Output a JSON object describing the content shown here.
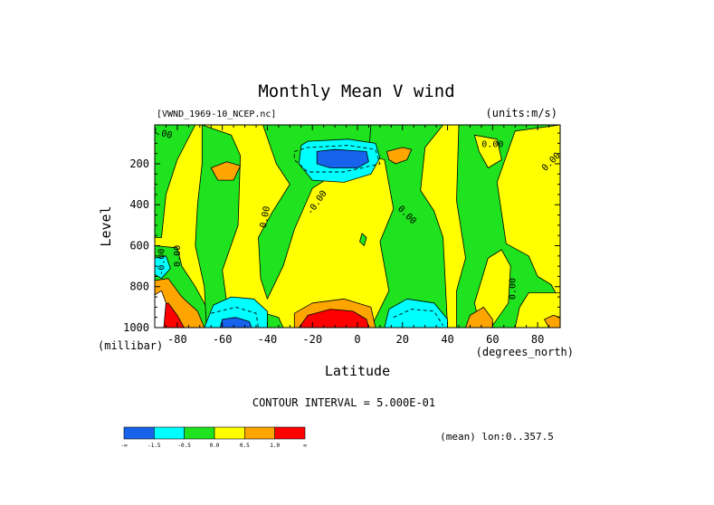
{
  "chart_data": {
    "type": "contour",
    "title": "Monthly Mean V wind",
    "dataset_label": "[VWND_1969-10_NCEP.nc]",
    "units_label": "(units:m/s)",
    "xlabel": "Latitude",
    "x_units": "(degrees_north)",
    "ylabel": "Level",
    "y_units": "(millibar)",
    "xlim": [
      -90,
      90
    ],
    "ylim": [
      1000,
      10
    ],
    "x_ticks": [
      -80,
      -60,
      -40,
      -20,
      0,
      20,
      40,
      60,
      80
    ],
    "x_tick_labels": [
      "-80",
      "-60",
      "-40",
      "-20",
      "0",
      "20",
      "40",
      "60",
      "80"
    ],
    "y_ticks": [
      200,
      400,
      600,
      800,
      1000
    ],
    "y_tick_labels": [
      "200",
      "400",
      "600",
      "800",
      "1000"
    ],
    "contour_interval_text": "CONTOUR INTERVAL = 5.000E-01",
    "mean_text": "(mean) lon:0..357.5",
    "colorbar": {
      "colors": [
        "#1763ec",
        "#00ffff",
        "#1ee31e",
        "#ffff00",
        "#ffa500",
        "#ff0000"
      ],
      "labels": [
        "-∞",
        "-1.5",
        "-0.5",
        "0.0",
        "0.5",
        "1.0",
        "∞"
      ]
    },
    "background_color": "#ffff00",
    "regions": [
      {
        "color": "#1ee31e",
        "points": [
          [
            -90,
            10
          ],
          [
            -72,
            10
          ],
          [
            -80,
            180
          ],
          [
            -85,
            350
          ],
          [
            -87,
            560
          ],
          [
            -90,
            560
          ]
        ]
      },
      {
        "color": "#1ee31e",
        "points": [
          [
            -90,
            600
          ],
          [
            -80,
            610
          ],
          [
            -78,
            700
          ],
          [
            -72,
            800
          ],
          [
            -67,
            900
          ],
          [
            -64,
            1000
          ],
          [
            -90,
            1000
          ]
        ]
      },
      {
        "color": "#1ee31e",
        "points": [
          [
            -69,
            10
          ],
          [
            -56,
            60
          ],
          [
            -52,
            160
          ],
          [
            -53,
            500
          ],
          [
            -60,
            720
          ],
          [
            -58,
            880
          ],
          [
            -54,
            930
          ],
          [
            -44,
            920
          ],
          [
            -35,
            950
          ],
          [
            -33,
            1000
          ],
          [
            -67,
            1000
          ],
          [
            -68,
            800
          ],
          [
            -72,
            600
          ],
          [
            -71,
            400
          ],
          [
            -69,
            200
          ]
        ]
      },
      {
        "color": "#1ee31e",
        "points": [
          [
            -42,
            10
          ],
          [
            -36,
            200
          ],
          [
            -30,
            300
          ],
          [
            -38,
            440
          ],
          [
            -44,
            560
          ],
          [
            -43,
            760
          ],
          [
            -40,
            860
          ],
          [
            -33,
            700
          ],
          [
            -28,
            520
          ],
          [
            -20,
            320
          ],
          [
            -6,
            220
          ],
          [
            10,
            140
          ],
          [
            24,
            100
          ],
          [
            30,
            10
          ]
        ]
      },
      {
        "color": "#1ee31e",
        "points": [
          [
            5,
            160
          ],
          [
            12,
            180
          ],
          [
            16,
            420
          ],
          [
            10,
            580
          ],
          [
            14,
            820
          ],
          [
            6,
            1000
          ],
          [
            40,
            1000
          ],
          [
            38,
            560
          ],
          [
            34,
            430
          ],
          [
            28,
            330
          ],
          [
            30,
            120
          ],
          [
            38,
            10
          ],
          [
            6,
            10
          ]
        ]
      },
      {
        "color": "#1ee31e",
        "points": [
          [
            45,
            10
          ],
          [
            44,
            380
          ],
          [
            48,
            660
          ],
          [
            44,
            820
          ],
          [
            44,
            1000
          ],
          [
            90,
            1000
          ],
          [
            90,
            870
          ],
          [
            86,
            790
          ],
          [
            80,
            750
          ],
          [
            76,
            650
          ],
          [
            66,
            590
          ],
          [
            62,
            290
          ],
          [
            70,
            40
          ],
          [
            90,
            10
          ]
        ]
      },
      {
        "color": "#ffff00",
        "points": [
          [
            58,
            660
          ],
          [
            64,
            620
          ],
          [
            68,
            700
          ],
          [
            67,
            880
          ],
          [
            60,
            990
          ],
          [
            54,
            980
          ],
          [
            52,
            880
          ]
        ]
      },
      {
        "color": "#ffff00",
        "points": [
          [
            76,
            830
          ],
          [
            90,
            830
          ],
          [
            90,
            1000
          ],
          [
            70,
            1000
          ],
          [
            72,
            900
          ]
        ]
      },
      {
        "color": "#ffff00",
        "points": [
          [
            52,
            60
          ],
          [
            62,
            80
          ],
          [
            64,
            180
          ],
          [
            58,
            220
          ],
          [
            54,
            140
          ]
        ]
      },
      {
        "color": "#1ee31e",
        "points": [
          [
            2,
            540
          ],
          [
            4,
            560
          ],
          [
            3,
            600
          ],
          [
            1,
            580
          ]
        ]
      },
      {
        "color": "#00ffff",
        "points": [
          [
            -90,
            660
          ],
          [
            -85,
            650
          ],
          [
            -83,
            710
          ],
          [
            -87,
            760
          ],
          [
            -90,
            740
          ]
        ]
      },
      {
        "color": "#00ffff",
        "points": [
          [
            -25,
            110
          ],
          [
            -22,
            90
          ],
          [
            -4,
            80
          ],
          [
            8,
            100
          ],
          [
            10,
            170
          ],
          [
            6,
            250
          ],
          [
            -6,
            290
          ],
          [
            -20,
            280
          ],
          [
            -26,
            200
          ]
        ]
      },
      {
        "color": "#1763ec",
        "points": [
          [
            -18,
            140
          ],
          [
            -10,
            130
          ],
          [
            4,
            140
          ],
          [
            5,
            190
          ],
          [
            0,
            220
          ],
          [
            -12,
            220
          ],
          [
            -18,
            200
          ]
        ]
      },
      {
        "color": "#00ffff",
        "points": [
          [
            -68,
            1000
          ],
          [
            -64,
            890
          ],
          [
            -56,
            850
          ],
          [
            -46,
            860
          ],
          [
            -40,
            920
          ],
          [
            -40,
            1000
          ]
        ]
      },
      {
        "color": "#1763ec",
        "points": [
          [
            -61,
            1000
          ],
          [
            -60,
            960
          ],
          [
            -54,
            950
          ],
          [
            -48,
            970
          ],
          [
            -47,
            1000
          ]
        ]
      },
      {
        "color": "#00ffff",
        "points": [
          [
            12,
            1000
          ],
          [
            14,
            910
          ],
          [
            22,
            860
          ],
          [
            34,
            880
          ],
          [
            40,
            960
          ],
          [
            40,
            1000
          ]
        ]
      },
      {
        "color": "#ffa500",
        "points": [
          [
            -90,
            770
          ],
          [
            -84,
            760
          ],
          [
            -78,
            850
          ],
          [
            -71,
            920
          ],
          [
            -68,
            1000
          ],
          [
            -90,
            1000
          ]
        ]
      },
      {
        "color": "#ff0000",
        "points": [
          [
            -88,
            900
          ],
          [
            -84,
            880
          ],
          [
            -80,
            940
          ],
          [
            -77,
            1000
          ],
          [
            -88,
            1000
          ]
        ]
      },
      {
        "color": "#ffa500",
        "points": [
          [
            -28,
            1000
          ],
          [
            -28,
            930
          ],
          [
            -20,
            880
          ],
          [
            -6,
            860
          ],
          [
            6,
            900
          ],
          [
            8,
            1000
          ]
        ]
      },
      {
        "color": "#ff0000",
        "points": [
          [
            -26,
            1000
          ],
          [
            -22,
            940
          ],
          [
            -12,
            910
          ],
          [
            -2,
            920
          ],
          [
            4,
            960
          ],
          [
            5,
            1000
          ]
        ]
      },
      {
        "color": "#ffa500",
        "points": [
          [
            -65,
            220
          ],
          [
            -58,
            190
          ],
          [
            -52,
            210
          ],
          [
            -55,
            280
          ],
          [
            -62,
            280
          ]
        ]
      },
      {
        "color": "#ffa500",
        "points": [
          [
            13,
            140
          ],
          [
            20,
            120
          ],
          [
            24,
            130
          ],
          [
            22,
            180
          ],
          [
            17,
            200
          ],
          [
            14,
            180
          ]
        ]
      },
      {
        "color": "#ffa500",
        "points": [
          [
            48,
            1000
          ],
          [
            50,
            940
          ],
          [
            56,
            900
          ],
          [
            60,
            960
          ],
          [
            60,
            1000
          ]
        ]
      },
      {
        "color": "#ffa500",
        "points": [
          [
            83,
            960
          ],
          [
            87,
            940
          ],
          [
            90,
            950
          ],
          [
            90,
            1000
          ],
          [
            85,
            1000
          ]
        ]
      },
      {
        "color": "#ffffff",
        "points": [
          [
            -90,
            840
          ],
          [
            -87,
            820
          ],
          [
            -85,
            880
          ],
          [
            -86,
            1000
          ],
          [
            -90,
            1000
          ]
        ]
      }
    ],
    "dashed_lines": [
      [
        [
          -28,
          140
        ],
        [
          -22,
          120
        ],
        [
          -4,
          110
        ],
        [
          8,
          130
        ],
        [
          10,
          200
        ],
        [
          -6,
          240
        ],
        [
          -22,
          240
        ],
        [
          -28,
          180
        ],
        [
          -28,
          140
        ]
      ],
      [
        [
          -65,
          930
        ],
        [
          -54,
          900
        ],
        [
          -45,
          930
        ],
        [
          -44,
          1000
        ]
      ],
      [
        [
          16,
          950
        ],
        [
          24,
          910
        ],
        [
          34,
          920
        ],
        [
          38,
          990
        ]
      ]
    ],
    "contour_labels": [
      {
        "text": "0.00",
        "x": -87,
        "y": 50,
        "rotate": 15
      },
      {
        "text": "0.00",
        "x": -80,
        "y": 650,
        "rotate": -90
      },
      {
        "text": "-0.00",
        "x": -87,
        "y": 680,
        "rotate": -90
      },
      {
        "text": "0.00",
        "x": -41,
        "y": 460,
        "rotate": -80
      },
      {
        "text": "-0.00",
        "x": -18,
        "y": 390,
        "rotate": -55
      },
      {
        "text": "0.00",
        "x": 22,
        "y": 450,
        "rotate": 45
      },
      {
        "text": "0.00",
        "x": 60,
        "y": 105,
        "rotate": 0
      },
      {
        "text": "0.00",
        "x": 86,
        "y": 190,
        "rotate": -45
      },
      {
        "text": "0.00",
        "x": 69,
        "y": 810,
        "rotate": -90
      }
    ]
  }
}
